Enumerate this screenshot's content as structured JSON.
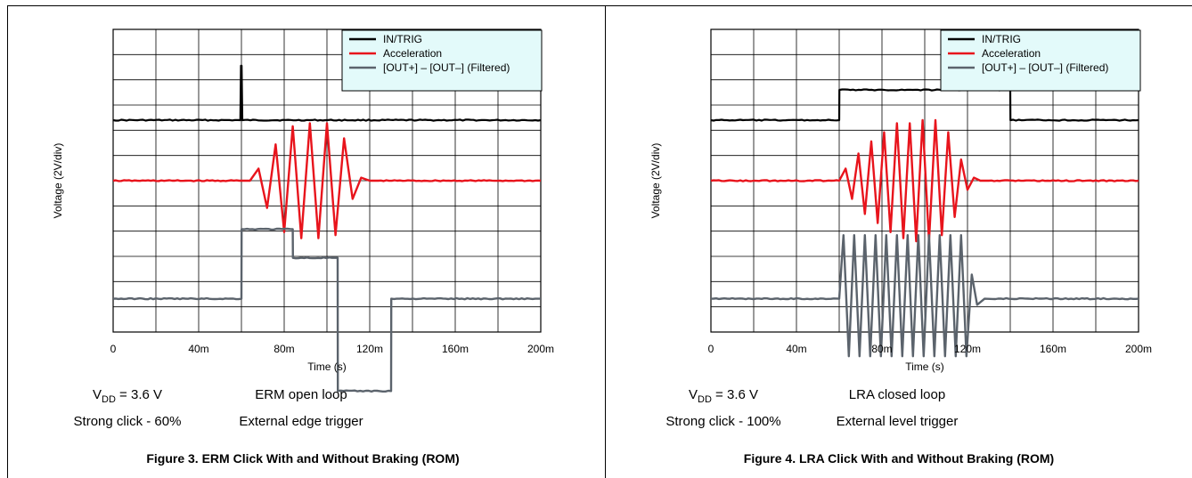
{
  "chart_data": [
    {
      "type": "line",
      "title": "",
      "xlabel": "Time (s)",
      "ylabel": "Voltage (2V/div)",
      "xlim": [
        0,
        0.2
      ],
      "ylim": [
        -5,
        5
      ],
      "x_ticks": [
        "0",
        "40m",
        "80m",
        "120m",
        "160m",
        "200m"
      ],
      "grid": true,
      "legend_position": "top-right",
      "series": [
        {
          "name": "IN/TRIG",
          "color": "#000000",
          "x": [
            0,
            0.0595,
            0.0598,
            0.0601,
            0.0604,
            0.2
          ],
          "y": [
            2.0,
            2.0,
            3.8,
            3.8,
            2.0,
            2.0
          ]
        },
        {
          "name": "Acceleration",
          "color": "#e8141c",
          "x": [
            0,
            0.064,
            0.068,
            0.072,
            0.076,
            0.08,
            0.084,
            0.088,
            0.092,
            0.096,
            0.1,
            0.104,
            0.108,
            0.112,
            0.116,
            0.12,
            0.124,
            0.2
          ],
          "y": [
            0,
            0,
            0.4,
            -0.9,
            1.2,
            -1.7,
            1.8,
            -1.9,
            1.9,
            -1.9,
            1.9,
            -1.8,
            1.4,
            -0.6,
            0.1,
            0,
            0,
            0
          ]
        },
        {
          "name": "[OUT+] – [OUT–] (Filtered)",
          "color": "#5b636c",
          "x": [
            0,
            0.06,
            0.0601,
            0.084,
            0.0841,
            0.105,
            0.1051,
            0.13,
            0.1301,
            0.2
          ],
          "y": [
            -3.9,
            -3.9,
            -1.6,
            -1.6,
            -2.55,
            -2.55,
            -6.95,
            -6.95,
            -3.9,
            -3.9
          ]
        }
      ],
      "annotations": [
        {
          "label": "V",
          "sub": "DD",
          "rest": " = 3.6 V"
        },
        "ERM open loop",
        "Strong click - 60%",
        "External edge trigger"
      ],
      "caption": "Figure 3. ERM Click With and Without Braking (ROM)"
    },
    {
      "type": "line",
      "title": "",
      "xlabel": "Time (s)",
      "ylabel": "Voltage (2V/div)",
      "xlim": [
        0,
        0.2
      ],
      "ylim": [
        -5,
        5
      ],
      "x_ticks": [
        "0",
        "40m",
        "80m",
        "120m",
        "160m",
        "200m"
      ],
      "grid": true,
      "legend_position": "top-right",
      "series": [
        {
          "name": "IN/TRIG",
          "color": "#000000",
          "x": [
            0,
            0.06,
            0.0601,
            0.14,
            0.1401,
            0.2
          ],
          "y": [
            2.0,
            2.0,
            3.0,
            3.0,
            2.0,
            2.0
          ]
        },
        {
          "name": "Acceleration",
          "color": "#e8141c",
          "x": [
            0,
            0.06,
            0.063,
            0.066,
            0.069,
            0.072,
            0.075,
            0.078,
            0.081,
            0.084,
            0.087,
            0.09,
            0.093,
            0.096,
            0.099,
            0.102,
            0.105,
            0.108,
            0.111,
            0.114,
            0.117,
            0.12,
            0.123,
            0.126,
            0.13,
            0.2
          ],
          "y": [
            0,
            0,
            0.4,
            -0.6,
            0.9,
            -1.1,
            1.3,
            -1.4,
            1.6,
            -1.7,
            1.9,
            -1.9,
            1.9,
            -2.0,
            2.0,
            -2.0,
            2.0,
            -1.8,
            1.6,
            -1.2,
            0.7,
            -0.3,
            0.1,
            0,
            0,
            0
          ]
        },
        {
          "name": "[OUT+] – [OUT–] (Filtered)",
          "color": "#5b636c",
          "x": [
            0,
            0.06,
            0.062,
            0.0645,
            0.067,
            0.0695,
            0.072,
            0.0745,
            0.077,
            0.0795,
            0.082,
            0.0845,
            0.087,
            0.0895,
            0.092,
            0.0945,
            0.097,
            0.0995,
            0.102,
            0.1045,
            0.107,
            0.1095,
            0.112,
            0.1145,
            0.117,
            0.1195,
            0.122,
            0.1245,
            0.128,
            0.2
          ],
          "y": [
            -3.9,
            -3.9,
            -1.8,
            -5.8,
            -1.8,
            -5.8,
            -1.8,
            -5.8,
            -1.8,
            -5.8,
            -1.8,
            -5.8,
            -1.8,
            -5.8,
            -1.8,
            -5.8,
            -1.8,
            -5.8,
            -1.8,
            -5.8,
            -1.8,
            -5.8,
            -1.8,
            -5.8,
            -1.8,
            -5.8,
            -3.1,
            -4.1,
            -3.9,
            -3.9
          ]
        }
      ],
      "annotations": [
        {
          "label": "V",
          "sub": "DD",
          "rest": " = 3.6 V"
        },
        "LRA closed loop",
        "Strong click - 100%",
        "External level trigger"
      ],
      "caption": "Figure 4. LRA Click With and Without Braking (ROM)"
    }
  ]
}
